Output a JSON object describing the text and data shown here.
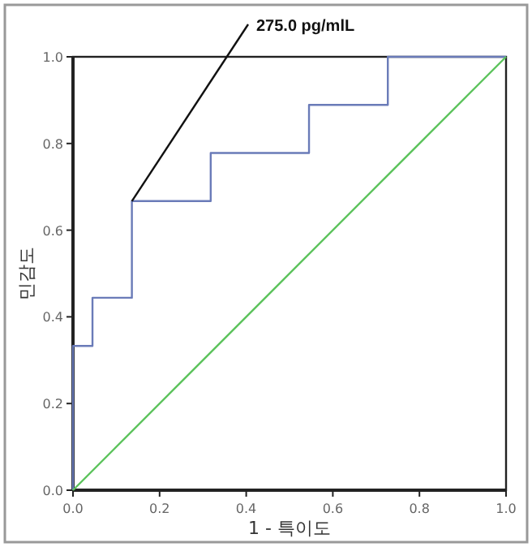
{
  "chart_data": {
    "type": "line",
    "xlabel": "1 - 특이도",
    "ylabel": "민감도",
    "series": [
      {
        "color": "#6a7bb8",
        "x": [
          0,
          0,
          0.045,
          0.045,
          0.136,
          0.136,
          0.318,
          0.318,
          0.545,
          0.545,
          0.727,
          0.727,
          1
        ],
        "values": [
          0,
          0.333,
          0.333,
          0.444,
          0.444,
          0.667,
          0.667,
          0.778,
          0.778,
          0.889,
          0.889,
          1,
          1
        ]
      },
      {
        "color": "#5cc35c",
        "x": [
          0,
          1
        ],
        "values": [
          0,
          1
        ]
      }
    ],
    "xlim": [
      0,
      1
    ],
    "ylim": [
      0,
      1
    ],
    "xticks": [
      {
        "value": 0,
        "label": "0.0"
      },
      {
        "value": 0.2,
        "label": "0.2"
      },
      {
        "value": 0.4,
        "label": "0.4"
      },
      {
        "value": 0.6,
        "label": "0.6"
      },
      {
        "value": 0.8,
        "label": "0.8"
      },
      {
        "value": 1,
        "label": "1.0"
      }
    ],
    "yticks": [
      {
        "value": 0,
        "label": "0.0"
      },
      {
        "value": 0.2,
        "label": "0.2"
      },
      {
        "value": 0.4,
        "label": "0.4"
      },
      {
        "value": 0.6,
        "label": "0.6"
      },
      {
        "value": 0.8,
        "label": "0.8"
      },
      {
        "value": 1,
        "label": "1.0"
      }
    ],
    "annotations": [
      {
        "text": "275.0 pg/mlL",
        "x": 0.136,
        "y": 0.667
      }
    ],
    "grid": false,
    "marker": "none",
    "line_style": "solid"
  }
}
